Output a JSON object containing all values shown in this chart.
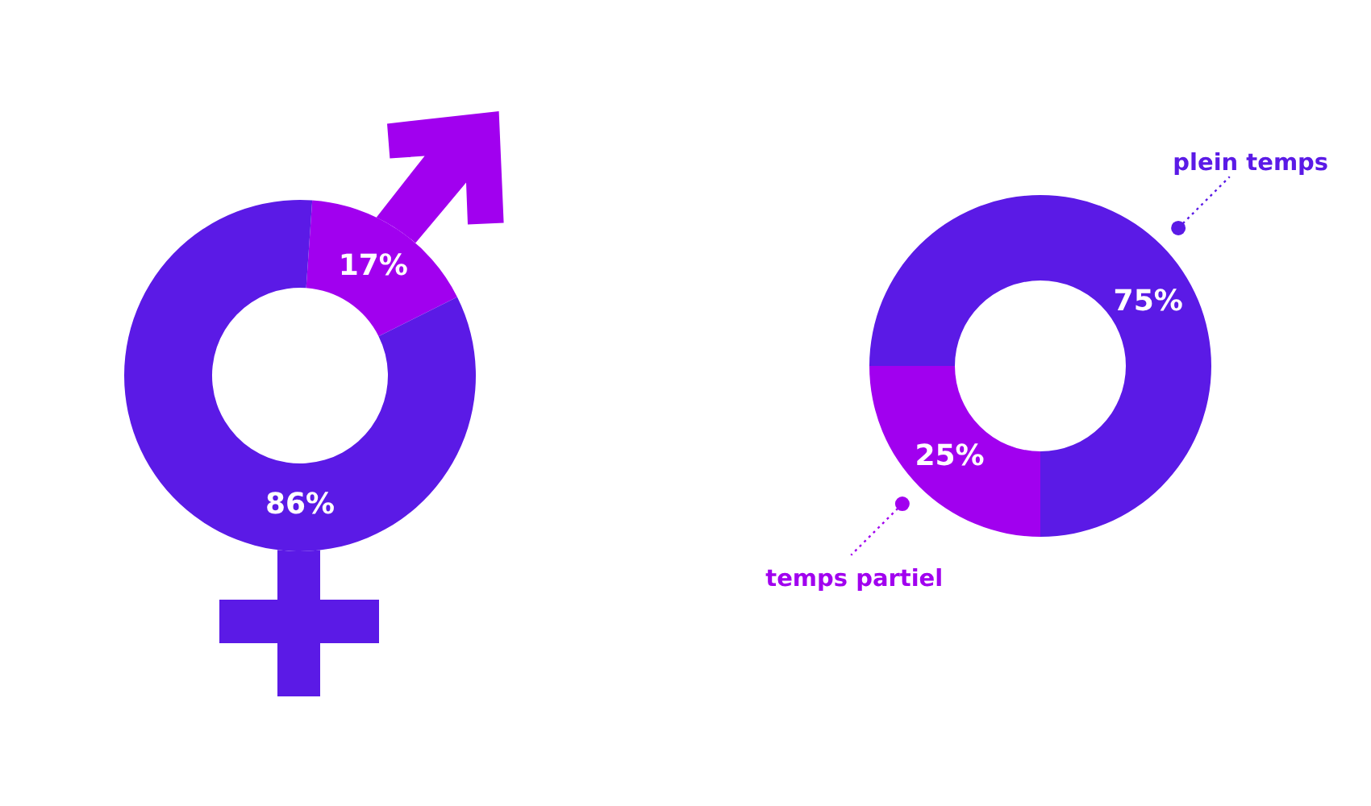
{
  "chart_data": [
    {
      "type": "donut",
      "categories": [
        null,
        null
      ],
      "values": [
        17,
        86
      ],
      "colors": [
        "#a100ef",
        "#5b1ae6"
      ],
      "value_labels": [
        "17%",
        "86%"
      ]
    },
    {
      "type": "donut",
      "categories": [
        "plein temps",
        "temps partiel"
      ],
      "values": [
        75,
        25
      ],
      "colors": [
        "#5b1ae6",
        "#a100ef"
      ],
      "value_labels": [
        "75%",
        "25%"
      ]
    }
  ]
}
